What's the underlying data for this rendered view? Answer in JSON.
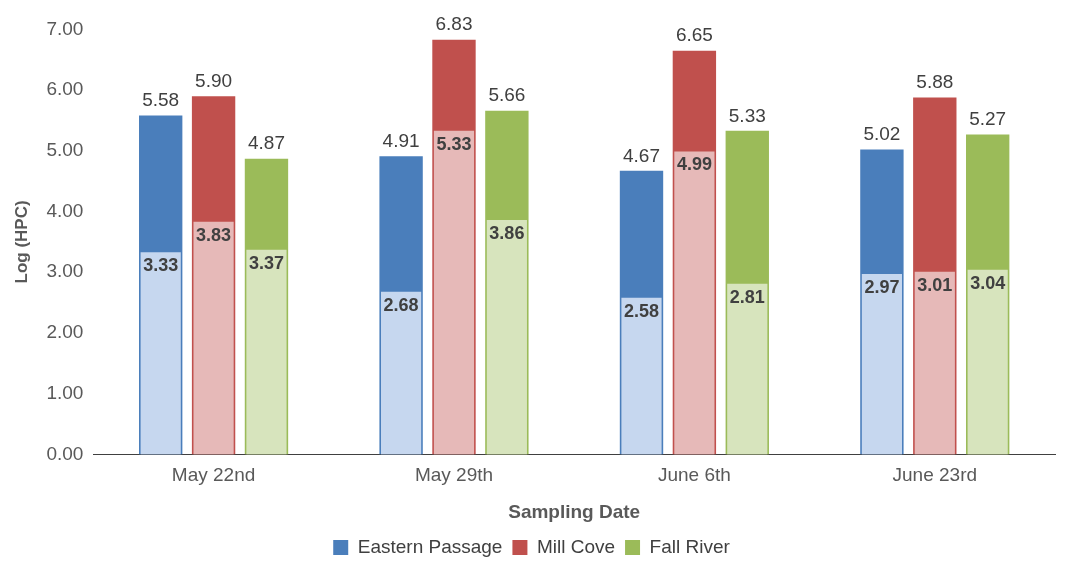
{
  "chart_data": {
    "type": "bar",
    "xlabel": "Sampling Date",
    "ylabel": "Log (HPC)",
    "categories": [
      "May 22nd",
      "May 29th",
      "June 6th",
      "June 23rd"
    ],
    "series": [
      {
        "name": "Eastern Passage",
        "color": "#4a7ebb",
        "values": [
          5.58,
          4.91,
          4.67,
          5.02
        ],
        "value_labels": [
          "5.58",
          "4.91",
          "4.67",
          "5.02"
        ]
      },
      {
        "name": "Mill Cove",
        "color": "#c0504d",
        "values": [
          5.9,
          6.83,
          6.65,
          5.88
        ],
        "value_labels": [
          "5.90",
          "6.83",
          "6.65",
          "5.88"
        ]
      },
      {
        "name": "Fall River",
        "color": "#9bbb59",
        "values": [
          4.87,
          5.66,
          5.33,
          5.27
        ],
        "value_labels": [
          "4.87",
          "5.66",
          "5.33",
          "5.27"
        ]
      },
      {
        "color": "#c6d7ef",
        "values": [
          3.33,
          2.68,
          2.58,
          2.97
        ],
        "value_labels": [
          "3.33",
          "2.68",
          "2.58",
          "2.97"
        ]
      },
      {
        "color": "#e6b9b8",
        "values": [
          3.83,
          5.33,
          4.99,
          3.01
        ],
        "value_labels": [
          "3.83",
          "5.33",
          "4.99",
          "3.01"
        ]
      },
      {
        "color": "#d7e4bd",
        "values": [
          3.37,
          3.86,
          2.81,
          3.04
        ],
        "value_labels": [
          "3.37",
          "3.86",
          "2.81",
          "3.04"
        ]
      }
    ],
    "ylim": [
      0,
      7
    ],
    "yticks": [
      {
        "value": 0,
        "label": "0.00"
      },
      {
        "value": 1,
        "label": "1.00"
      },
      {
        "value": 2,
        "label": "2.00"
      },
      {
        "value": 3,
        "label": "3.00"
      },
      {
        "value": 4,
        "label": "4.00"
      },
      {
        "value": 5,
        "label": "5.00"
      },
      {
        "value": 6,
        "label": "6.00"
      },
      {
        "value": 7,
        "label": "7.00"
      }
    ],
    "grid": false,
    "legend": "bottom"
  }
}
